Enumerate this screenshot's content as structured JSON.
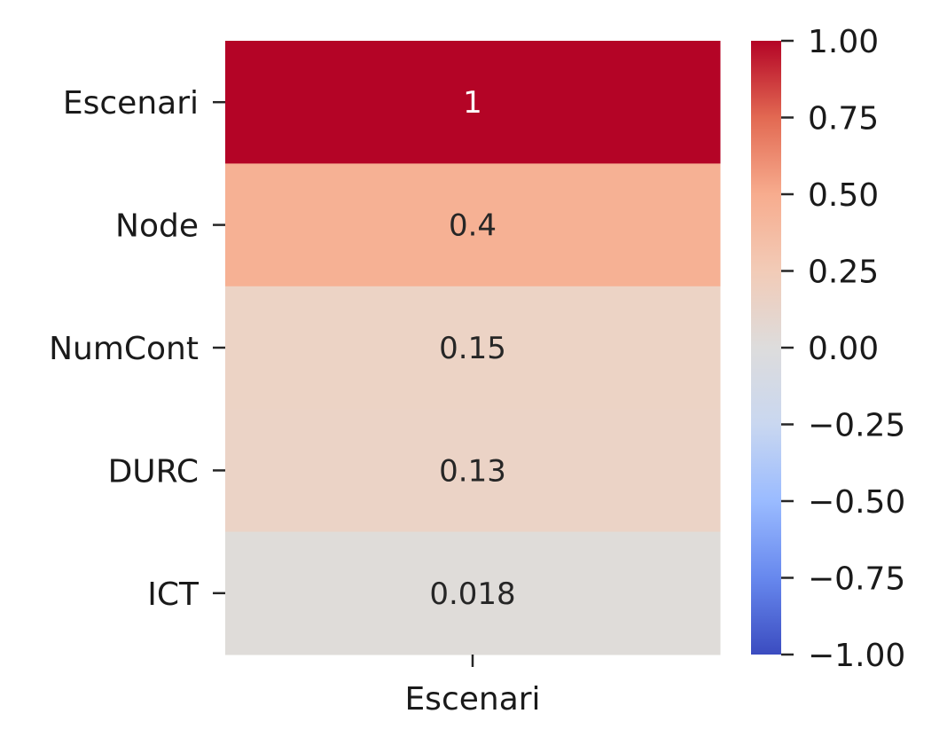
{
  "chart_data": {
    "type": "heatmap",
    "title": "",
    "xlabel": "",
    "ylabel": "",
    "columns": [
      "Escenari"
    ],
    "rows": [
      "Escenari",
      "Node",
      "NumCont",
      "DURC",
      "ICT"
    ],
    "values": [
      [
        1
      ],
      [
        0.4
      ],
      [
        0.15
      ],
      [
        0.13
      ],
      [
        0.018
      ]
    ],
    "cell_labels": [
      "1",
      "0.4",
      "0.15",
      "0.13",
      "0.018"
    ],
    "colormap": "coolwarm",
    "vmin": -1.0,
    "vmax": 1.0,
    "colorbar": {
      "ticks": [
        1.0,
        0.75,
        0.5,
        0.25,
        0.0,
        -0.25,
        -0.5,
        -0.75,
        -1.0
      ],
      "tick_labels": [
        "1.00",
        "0.75",
        "0.50",
        "0.25",
        "0.00",
        "−0.25",
        "−0.50",
        "−0.75",
        "−1.00"
      ]
    },
    "cell_colors": [
      "#b40426",
      "#f6b194",
      "#ecd3c5",
      "#ebd3c6",
      "#dfdcd9"
    ],
    "colorbar_gradient": [
      "#3b4cc0",
      "#6788ee",
      "#9abbff",
      "#c9d7f0",
      "#dddcdc",
      "#f2cbb7",
      "#f7ac8e",
      "#e26952",
      "#b40426"
    ]
  }
}
